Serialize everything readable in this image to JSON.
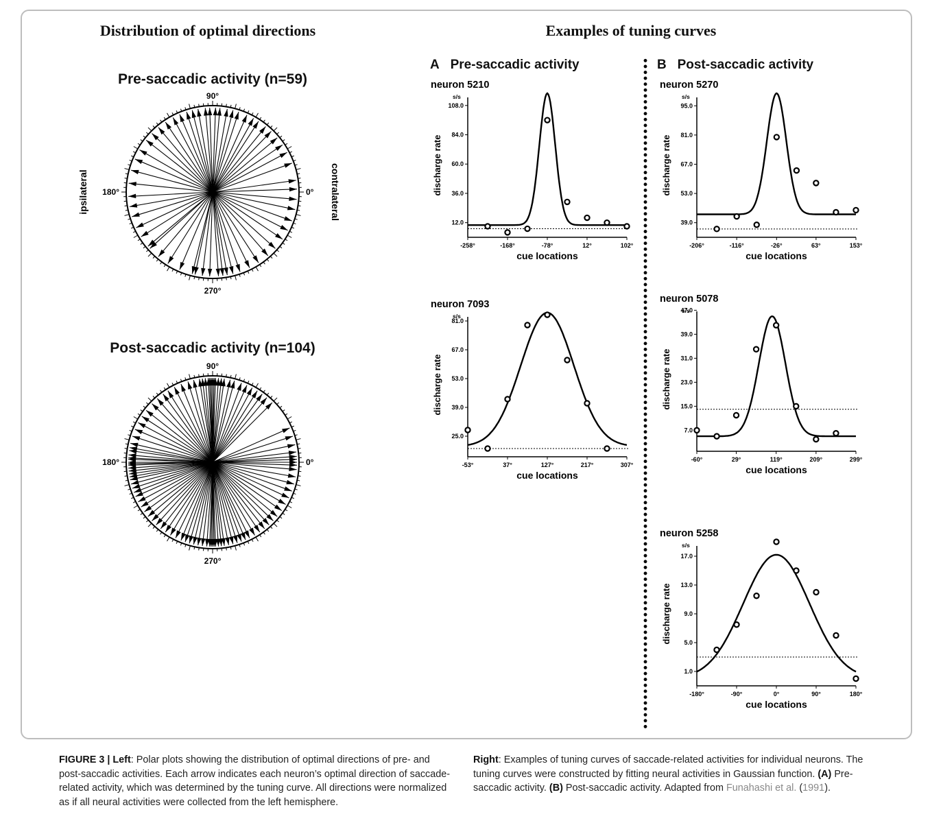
{
  "headings": {
    "left": "Distribution of optimal directions",
    "right": "Examples of tuning curves"
  },
  "polar_plots": [
    {
      "title": "Pre-saccadic activity (n=59)",
      "labels": {
        "top": "90°",
        "bottom": "270°",
        "left": "180°",
        "right": "0°"
      },
      "side_labels": {
        "left": "ipsilateral",
        "right": "contralateral"
      },
      "directions": [
        92,
        88,
        95,
        85,
        100,
        80,
        104,
        76,
        108,
        72,
        113,
        66,
        118,
        61,
        124,
        57,
        130,
        51,
        136,
        46,
        142,
        40,
        150,
        34,
        157,
        28,
        165,
        20,
        174,
        8,
        183,
        2,
        190,
        355,
        197,
        348,
        205,
        340,
        212,
        333,
        220,
        326,
        230,
        318,
        238,
        311,
        247,
        303,
        256,
        296,
        263,
        289,
        268,
        284,
        274,
        280,
        277,
        258,
        222
      ]
    },
    {
      "title": "Post-saccadic activity (n=104)",
      "labels": {
        "top": "90°",
        "bottom": "270°",
        "left": "180°",
        "right": "0°"
      },
      "side_labels": {
        "left": "",
        "right": ""
      },
      "directions": [
        88,
        89,
        90,
        91,
        92,
        93,
        95,
        86,
        84,
        82,
        97,
        99,
        78,
        75,
        103,
        107,
        70,
        66,
        112,
        117,
        62,
        58,
        122,
        126,
        54,
        50,
        131,
        136,
        45,
        142,
        147,
        152,
        157,
        162,
        167,
        170,
        172,
        175,
        177,
        178,
        180,
        181,
        182,
        184,
        186,
        188,
        190,
        192,
        195,
        198,
        201,
        204,
        208,
        212,
        216,
        220,
        224,
        228,
        232,
        236,
        240,
        244,
        248,
        251,
        254,
        257,
        260,
        263,
        266,
        268,
        269,
        270,
        271,
        272,
        274,
        276,
        278,
        281,
        284,
        287,
        290,
        293,
        296,
        300,
        304,
        308,
        312,
        316,
        320,
        325,
        330,
        335,
        340,
        345,
        350,
        355,
        358,
        0,
        2,
        4,
        7,
        12,
        18,
        24
      ]
    }
  ],
  "panels": {
    "A": {
      "letter": "A",
      "title": "Pre-saccadic activity"
    },
    "B": {
      "letter": "B",
      "title": "Post-saccadic activity"
    }
  },
  "chart_data": [
    {
      "type": "scatter",
      "panel": "A",
      "title": "neuron 5210",
      "xlabel": "cue locations",
      "ylabel": "discharge rate",
      "unit": "s/s",
      "xticks": [
        "-258°",
        "-168°",
        "-78°",
        "12°",
        "102°"
      ],
      "xlim": [
        -258,
        102
      ],
      "yticks": [
        "12.0",
        "36.0",
        "60.0",
        "84.0",
        "108.0"
      ],
      "ylim": [
        0,
        118
      ],
      "points": [
        {
          "x": -213,
          "y": 9
        },
        {
          "x": -168,
          "y": 4
        },
        {
          "x": -123,
          "y": 7
        },
        {
          "x": -78,
          "y": 96
        },
        {
          "x": -33,
          "y": 29
        },
        {
          "x": 12,
          "y": 16
        },
        {
          "x": 57,
          "y": 12
        },
        {
          "x": 102,
          "y": 9
        }
      ],
      "fit": {
        "baseline": 10,
        "peak": 118,
        "center": -78,
        "width": 18
      },
      "baseline_dotted": 7
    },
    {
      "type": "scatter",
      "panel": "A",
      "title": "neuron 7093",
      "xlabel": "cue locations",
      "ylabel": "discharge rate",
      "unit": "s/s",
      "xticks": [
        "-53°",
        "37°",
        "127°",
        "217°",
        "307°"
      ],
      "xlim": [
        -53,
        307
      ],
      "yticks": [
        "25.0",
        "39.0",
        "53.0",
        "67.0",
        "81.0"
      ],
      "ylim": [
        15,
        85
      ],
      "points": [
        {
          "x": -53,
          "y": 28
        },
        {
          "x": -8,
          "y": 19
        },
        {
          "x": 37,
          "y": 43
        },
        {
          "x": 82,
          "y": 79
        },
        {
          "x": 127,
          "y": 84
        },
        {
          "x": 172,
          "y": 62
        },
        {
          "x": 217,
          "y": 41
        },
        {
          "x": 262,
          "y": 19
        }
      ],
      "fit": {
        "baseline": 20,
        "peak": 85,
        "center": 127,
        "width": 60
      },
      "baseline_dotted": 19
    },
    {
      "type": "scatter",
      "panel": "B",
      "title": "neuron 5270",
      "xlabel": "cue locations",
      "ylabel": "discharge rate",
      "unit": "s/s",
      "xticks": [
        "-206°",
        "-116°",
        "-26°",
        "63°",
        "153°"
      ],
      "xlim": [
        -206,
        153
      ],
      "yticks": [
        "39.0",
        "53.0",
        "67.0",
        "81.0",
        "95.0"
      ],
      "ylim": [
        32,
        101
      ],
      "points": [
        {
          "x": -161,
          "y": 36
        },
        {
          "x": -116,
          "y": 42
        },
        {
          "x": -71,
          "y": 38
        },
        {
          "x": -26,
          "y": 80
        },
        {
          "x": 19,
          "y": 64
        },
        {
          "x": 63,
          "y": 58
        },
        {
          "x": 108,
          "y": 44
        },
        {
          "x": 153,
          "y": 45
        }
      ],
      "fit": {
        "baseline": 43,
        "peak": 101,
        "center": -26,
        "width": 22
      },
      "baseline_dotted": 36
    },
    {
      "type": "scatter",
      "panel": "B",
      "title": "neuron 5078",
      "xlabel": "cue locations",
      "ylabel": "discharge rate",
      "unit": "s/s",
      "xticks": [
        "-60°",
        "29°",
        "119°",
        "209°",
        "299°"
      ],
      "xlim": [
        -60,
        299
      ],
      "yticks": [
        "7.0",
        "15.0",
        "23.0",
        "31.0",
        "39.0",
        "47.0"
      ],
      "ylim": [
        0,
        48
      ],
      "points": [
        {
          "x": -60,
          "y": 7
        },
        {
          "x": -15,
          "y": 5
        },
        {
          "x": 29,
          "y": 12
        },
        {
          "x": 74,
          "y": 34
        },
        {
          "x": 119,
          "y": 42
        },
        {
          "x": 164,
          "y": 15
        },
        {
          "x": 209,
          "y": 4
        },
        {
          "x": 254,
          "y": 6
        }
      ],
      "fit": {
        "baseline": 5,
        "peak": 45,
        "center": 110,
        "width": 30
      },
      "baseline_dotted": 14
    },
    {
      "type": "scatter",
      "panel": "B",
      "title": "neuron 5258",
      "xlabel": "cue locations",
      "ylabel": "discharge rate",
      "unit": "s/s",
      "xticks": [
        "-180°",
        "-90°",
        "0°",
        "90°",
        "180°"
      ],
      "xlim": [
        -180,
        180
      ],
      "yticks": [
        "1.0",
        "5.0",
        "9.0",
        "13.0",
        "17.0"
      ],
      "ylim": [
        -1,
        19
      ],
      "points": [
        {
          "x": -135,
          "y": 4
        },
        {
          "x": -90,
          "y": 7.5
        },
        {
          "x": -45,
          "y": 11.5
        },
        {
          "x": 0,
          "y": 19
        },
        {
          "x": 45,
          "y": 15
        },
        {
          "x": 90,
          "y": 12
        },
        {
          "x": 135,
          "y": 6
        },
        {
          "x": 180,
          "y": 0
        }
      ],
      "fit": {
        "baseline": 0,
        "peak": 17.2,
        "center": 0,
        "width": 75
      },
      "baseline_dotted": 3
    }
  ],
  "caption": {
    "label": "FIGURE 3 | ",
    "left_word": "Left",
    "text1": ": Polar plots showing the distribution of optimal directions of pre- and post-saccadic activities. Each arrow indicates each neuron’s optimal direction of saccade-related activity, which was determined by the tuning curve. All directions were normalized as if all neural activities were collected from the left hemisphere. ",
    "right_word": "Right",
    "text2": ": Examples of tuning curves of saccade-related activities for individual neurons. The tuning curves were constructed by fitting neural activities in Gaussian function. ",
    "a_label": "(A)",
    "text3": " Pre-saccadic activity. ",
    "b_label": "(B)",
    "text4": " Post-saccadic activity. Adapted from ",
    "ref": "Funahashi et al.",
    "ref_year_open": " (",
    "ref_year": "1991",
    "ref_year_close": ")."
  }
}
